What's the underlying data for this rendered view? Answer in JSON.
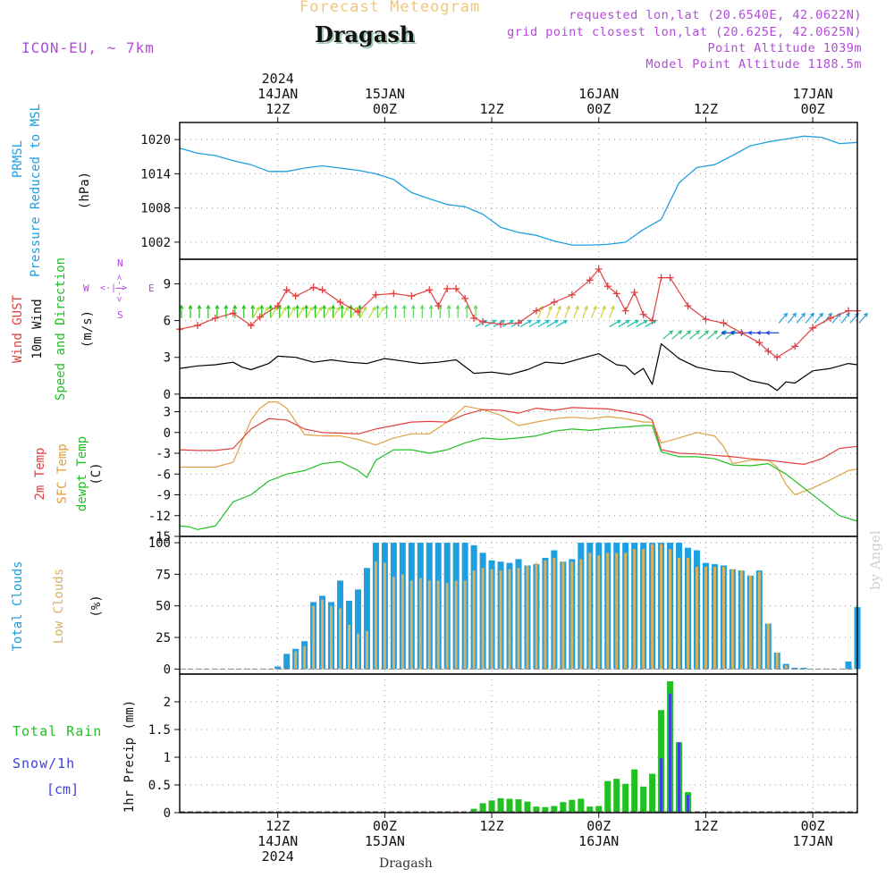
{
  "header": {
    "title": "Forecast Meteogram",
    "place": "Dragash",
    "model": "ICON-EU, ~ 7km",
    "requested": "requested lon,lat (20.6540E, 42.0622N)",
    "closest": "grid point closest lon,lat (20.625E, 42.0625N)",
    "point_altitude": "Point Altitude 1039m",
    "model_altitude": "Model Point Altitude 1188.5m",
    "watermark": "by Angel",
    "footer_place": "Dragash"
  },
  "colors": {
    "pressure": "#1e9fe0",
    "gust": "#e04040",
    "wind10m": "#000000",
    "temp2m": "#e04040",
    "sfc": "#e0a040",
    "dewpt": "#20c020",
    "clouds_total": "#1e9fe0",
    "clouds_low": "#d8b060",
    "rain": "#22c022",
    "snow": "#4040e0",
    "meta": "#b04cd8"
  },
  "chart_data": [
    {
      "type": "line",
      "title": "PRMSL Pressure Reduced to MSL",
      "label_left": "PRMSL",
      "label_right": "Pressure Reduced to MSL",
      "unit": "(hPa)",
      "x_ticks_top": [
        {
          "h": 12,
          "date": "14JAN",
          "hour": "12Z",
          "year": "2024"
        },
        {
          "h": 24,
          "date": "15JAN",
          "hour": "00Z"
        },
        {
          "h": 36,
          "date": "",
          "hour": "12Z"
        },
        {
          "h": 48,
          "date": "16JAN",
          "hour": "00Z"
        },
        {
          "h": 60,
          "date": "",
          "hour": "12Z"
        },
        {
          "h": 72,
          "date": "17JAN",
          "hour": "00Z"
        }
      ],
      "x_range_hours": [
        1,
        77
      ],
      "ylim": [
        999,
        1023
      ],
      "yticks": [
        1002,
        1008,
        1014,
        1020
      ],
      "series": [
        {
          "name": "PRMSL",
          "x": [
            1,
            3,
            5,
            7,
            9,
            11,
            13,
            15,
            17,
            19,
            21,
            23,
            25,
            27,
            29,
            31,
            33,
            35,
            37,
            39,
            41,
            43,
            45,
            47,
            49,
            51,
            53,
            55,
            57,
            59,
            61,
            63,
            65,
            67,
            69,
            71,
            73,
            75,
            77
          ],
          "values": [
            1018.5,
            1017.6,
            1017.2,
            1016.3,
            1015.6,
            1014.4,
            1014.4,
            1015.0,
            1015.4,
            1015.0,
            1014.6,
            1014.0,
            1013.0,
            1010.7,
            1009.6,
            1008.6,
            1008.2,
            1006.9,
            1004.6,
            1003.7,
            1003.2,
            1002.2,
            1001.5,
            1001.5,
            1001.6,
            1002.0,
            1004.2,
            1006.0,
            1012.4,
            1015.1,
            1015.6,
            1017.2,
            1018.9,
            1019.6,
            1020.1,
            1020.6,
            1020.4,
            1019.3,
            1019.5
          ]
        }
      ]
    },
    {
      "type": "line",
      "title": "Wind GUST / 10m Wind Speed and Direction",
      "label_gust": "Wind GUST",
      "label_wind": "10m Wind",
      "label_dir": "Speed and Direction",
      "unit": "(m/s)",
      "compass": {
        "n": "N",
        "s": "S",
        "w": "W",
        "e": "E",
        "arrow_h": "<-|->",
        "arrow_v": "<-|->"
      },
      "ylim": [
        -0.3,
        11
      ],
      "yticks": [
        0,
        3,
        6,
        9
      ],
      "series": [
        {
          "name": "Wind GUST",
          "x": [
            1,
            3,
            5,
            7,
            9,
            10,
            12,
            13,
            14,
            16,
            17,
            19,
            21,
            23,
            25,
            27,
            29,
            30,
            31,
            32,
            33,
            34,
            35,
            37,
            39,
            41,
            43,
            45,
            47,
            48,
            49,
            50,
            51,
            52,
            53,
            54,
            55,
            56,
            58,
            60,
            62,
            64,
            66,
            67,
            68,
            70,
            72,
            74,
            76,
            77
          ],
          "values": [
            5.3,
            5.6,
            6.2,
            6.6,
            5.6,
            6.3,
            7.2,
            8.5,
            8.0,
            8.7,
            8.5,
            7.5,
            6.7,
            8.1,
            8.2,
            8.0,
            8.5,
            7.2,
            8.6,
            8.6,
            7.8,
            6.2,
            5.9,
            5.7,
            5.8,
            6.8,
            7.5,
            8.1,
            9.3,
            10.2,
            8.8,
            8.2,
            6.8,
            8.3,
            6.5,
            6.0,
            9.5,
            9.5,
            7.2,
            6.1,
            5.8,
            5.0,
            4.2,
            3.5,
            3.0,
            3.9,
            5.4,
            6.2,
            6.8,
            6.8
          ]
        },
        {
          "name": "10m Wind",
          "x": [
            1,
            3,
            5,
            7,
            8,
            9,
            11,
            12,
            14,
            16,
            18,
            20,
            22,
            24,
            26,
            28,
            30,
            32,
            34,
            36,
            38,
            40,
            42,
            44,
            46,
            48,
            50,
            51,
            52,
            53,
            54,
            55,
            57,
            59,
            61,
            63,
            65,
            67,
            68,
            69,
            70,
            72,
            74,
            76,
            77
          ],
          "values": [
            2.1,
            2.3,
            2.4,
            2.6,
            2.2,
            2.0,
            2.5,
            3.1,
            3.0,
            2.6,
            2.8,
            2.6,
            2.5,
            2.9,
            2.7,
            2.5,
            2.6,
            2.8,
            1.7,
            1.8,
            1.6,
            2.0,
            2.6,
            2.5,
            2.9,
            3.3,
            2.4,
            2.3,
            1.6,
            2.1,
            0.8,
            4.1,
            2.9,
            2.2,
            1.9,
            1.8,
            1.1,
            0.8,
            0.3,
            1.0,
            0.9,
            1.9,
            2.1,
            2.5,
            2.4
          ]
        }
      ],
      "arrow_rows": [
        {
          "from_x": 1,
          "to_x": 21,
          "level": 6.2,
          "dir_deg": 180,
          "color": "#20c020"
        },
        {
          "from_x": 9,
          "to_x": 23,
          "level": 6.2,
          "dir_deg": 210,
          "color": "#b8e030"
        },
        {
          "from_x": 23,
          "to_x": 34,
          "level": 6.2,
          "dir_deg": 180,
          "color": "#60d060"
        },
        {
          "from_x": 34,
          "to_x": 43,
          "level": 5.5,
          "dir_deg": 240,
          "color": "#20c0c0"
        },
        {
          "from_x": 41,
          "to_x": 49,
          "level": 6.2,
          "dir_deg": 200,
          "color": "#d0d040"
        },
        {
          "from_x": 49,
          "to_x": 53,
          "level": 5.5,
          "dir_deg": 240,
          "color": "#20c0a0"
        },
        {
          "from_x": 55,
          "to_x": 62,
          "level": 4.5,
          "dir_deg": 230,
          "color": "#30c080"
        },
        {
          "from_x": 63,
          "to_x": 68,
          "level": 5.0,
          "dir_deg": 90,
          "color": "#2040e0"
        },
        {
          "from_x": 68,
          "to_x": 77,
          "level": 5.8,
          "dir_deg": 220,
          "color": "#1e9fe0"
        }
      ]
    },
    {
      "type": "line",
      "title": "2m Temp / SFC Temp / dewpt Temp",
      "label_t2m": "2m Temp",
      "label_sfc": "SFC Temp",
      "label_dew": "dewpt Temp",
      "unit": "(C)",
      "ylim": [
        -15,
        5
      ],
      "yticks": [
        3,
        0,
        -3,
        -6,
        -9,
        -12,
        -15
      ],
      "series": [
        {
          "name": "2m Temp",
          "x": [
            1,
            3,
            5,
            7,
            9,
            11,
            13,
            15,
            17,
            19,
            21,
            23,
            25,
            27,
            29,
            31,
            33,
            35,
            37,
            39,
            41,
            43,
            45,
            47,
            49,
            51,
            53,
            54,
            55,
            57,
            59,
            61,
            63,
            65,
            67,
            69,
            71,
            73,
            75,
            77
          ],
          "values": [
            -2.5,
            -2.6,
            -2.6,
            -2.3,
            0.5,
            2.0,
            1.8,
            0.5,
            0.0,
            -0.1,
            -0.2,
            0.5,
            1.0,
            1.5,
            1.6,
            1.5,
            2.6,
            3.3,
            3.2,
            2.8,
            3.5,
            3.2,
            3.6,
            3.5,
            3.4,
            3.0,
            2.5,
            1.8,
            -2.5,
            -3.0,
            -3.1,
            -3.3,
            -3.5,
            -3.8,
            -4.0,
            -4.3,
            -4.6,
            -3.8,
            -2.3,
            -2.0
          ]
        },
        {
          "name": "SFC Temp",
          "x": [
            1,
            3,
            5,
            7,
            9,
            10,
            11,
            12,
            13,
            15,
            17,
            19,
            21,
            23,
            25,
            27,
            29,
            31,
            33,
            35,
            37,
            39,
            41,
            43,
            45,
            47,
            49,
            51,
            53,
            54,
            55,
            57,
            59,
            61,
            62,
            63,
            65,
            67,
            68,
            69,
            70,
            72,
            74,
            76,
            77
          ],
          "values": [
            -5.0,
            -5.0,
            -5.0,
            -4.3,
            1.8,
            3.5,
            4.4,
            4.4,
            3.5,
            -0.3,
            -0.5,
            -0.5,
            -1.0,
            -1.8,
            -0.8,
            -0.2,
            -0.2,
            1.5,
            3.8,
            3.3,
            2.5,
            1.0,
            1.5,
            2.0,
            2.2,
            2.0,
            2.3,
            2.0,
            1.5,
            1.5,
            -1.5,
            -0.8,
            0.0,
            -0.5,
            -2.0,
            -4.5,
            -4.0,
            -4.0,
            -5.0,
            -7.5,
            -9.0,
            -8.0,
            -6.8,
            -5.5,
            -5.3
          ]
        },
        {
          "name": "dewpt Temp",
          "x": [
            1,
            2,
            3,
            5,
            7,
            9,
            11,
            13,
            15,
            17,
            19,
            21,
            22,
            23,
            25,
            27,
            29,
            31,
            33,
            35,
            37,
            39,
            41,
            43,
            45,
            47,
            49,
            51,
            53,
            54,
            55,
            57,
            59,
            61,
            63,
            65,
            67,
            69,
            71,
            73,
            75,
            77
          ],
          "values": [
            -13.5,
            -13.6,
            -14.0,
            -13.5,
            -10.0,
            -9.0,
            -7.0,
            -6.0,
            -5.5,
            -4.5,
            -4.2,
            -5.5,
            -6.5,
            -4.0,
            -2.5,
            -2.5,
            -3.0,
            -2.5,
            -1.5,
            -0.8,
            -1.0,
            -0.8,
            -0.5,
            0.2,
            0.5,
            0.3,
            0.6,
            0.8,
            1.0,
            1.0,
            -2.8,
            -3.5,
            -3.5,
            -3.8,
            -4.7,
            -4.8,
            -4.5,
            -6.0,
            -8.0,
            -10.0,
            -12.0,
            -12.8
          ]
        }
      ]
    },
    {
      "type": "bar",
      "title": "Total Clouds / Low Clouds",
      "label_total": "Total Clouds",
      "label_low": "Low Clouds",
      "unit": "(%)",
      "ylim": [
        -4,
        105
      ],
      "yticks": [
        0,
        25,
        50,
        75,
        100
      ],
      "x": [
        1,
        2,
        3,
        4,
        5,
        6,
        7,
        8,
        9,
        10,
        11,
        12,
        13,
        14,
        15,
        16,
        17,
        18,
        19,
        20,
        21,
        22,
        23,
        24,
        25,
        26,
        27,
        28,
        29,
        30,
        31,
        32,
        33,
        34,
        35,
        36,
        37,
        38,
        39,
        40,
        41,
        42,
        43,
        44,
        45,
        46,
        47,
        48,
        49,
        50,
        51,
        52,
        53,
        54,
        55,
        56,
        57,
        58,
        59,
        60,
        61,
        62,
        63,
        64,
        65,
        66,
        67,
        68,
        69,
        70,
        71,
        72,
        73,
        74,
        75,
        76,
        77
      ],
      "total": [
        0,
        0,
        0,
        0,
        0,
        0,
        0,
        0,
        0,
        0,
        0,
        2,
        12,
        16,
        22,
        53,
        58,
        53,
        70,
        54,
        63,
        80,
        100,
        100,
        100,
        100,
        100,
        100,
        100,
        100,
        100,
        100,
        100,
        98,
        92,
        86,
        85,
        84,
        87,
        82,
        83,
        88,
        94,
        85,
        87,
        100,
        100,
        100,
        100,
        100,
        100,
        100,
        100,
        100,
        100,
        100,
        100,
        96,
        94,
        84,
        83,
        82,
        79,
        78,
        74,
        78,
        36,
        13,
        4,
        1,
        1,
        0,
        0,
        0,
        0,
        6,
        49
      ],
      "low": [
        0,
        0,
        0,
        0,
        0,
        0,
        0,
        0,
        0,
        0,
        0,
        0,
        0,
        14,
        18,
        50,
        55,
        50,
        48,
        35,
        28,
        30,
        85,
        84,
        73,
        75,
        70,
        72,
        70,
        70,
        68,
        70,
        70,
        78,
        80,
        79,
        78,
        79,
        80,
        82,
        84,
        86,
        88,
        85,
        85,
        87,
        92,
        90,
        92,
        92,
        92,
        95,
        95,
        99,
        99,
        95,
        88,
        88,
        81,
        81,
        81,
        81,
        79,
        78,
        74,
        77,
        36,
        13,
        3,
        0,
        0,
        0,
        0,
        0,
        0,
        0,
        0
      ]
    },
    {
      "type": "bar",
      "title": "Total Rain / Snow/1h [cm]",
      "label_rain": "Total Rain",
      "label_snow": "Snow/1h",
      "label_cm": "[cm]",
      "unit": "1hr Precip (mm)",
      "ylim": [
        0,
        2.5
      ],
      "yticks": [
        0,
        0.5,
        1,
        1.5,
        2
      ],
      "ytick_labels": [
        "0",
        "0.5",
        "1",
        "1.5",
        "2"
      ],
      "x_ticks_bottom": [
        {
          "h": 12,
          "hour": "12Z",
          "date": "14JAN",
          "year": "2024"
        },
        {
          "h": 24,
          "hour": "00Z",
          "date": "15JAN"
        },
        {
          "h": 36,
          "hour": "12Z",
          "date": ""
        },
        {
          "h": 48,
          "hour": "00Z",
          "date": "16JAN"
        },
        {
          "h": 60,
          "hour": "12Z",
          "date": ""
        },
        {
          "h": 72,
          "hour": "00Z",
          "date": "17JAN"
        }
      ],
      "x": [
        34,
        35,
        36,
        37,
        38,
        39,
        40,
        41,
        42,
        43,
        44,
        45,
        46,
        47,
        48,
        49,
        50,
        51,
        52,
        53,
        54,
        55,
        56,
        57,
        58
      ],
      "rain": [
        0.07,
        0.17,
        0.22,
        0.26,
        0.25,
        0.24,
        0.2,
        0.11,
        0.1,
        0.12,
        0.19,
        0.23,
        0.25,
        0.11,
        0.12,
        0.57,
        0.61,
        0.52,
        0.78,
        0.47,
        0.7,
        1.85,
        2.37,
        1.27,
        0.37
      ],
      "snow": [
        0,
        0,
        0,
        0,
        0,
        0,
        0,
        0,
        0,
        0,
        0,
        0,
        0,
        0,
        0,
        0,
        0,
        0,
        0,
        0,
        0,
        0.98,
        2.15,
        1.27,
        0.32
      ]
    }
  ]
}
